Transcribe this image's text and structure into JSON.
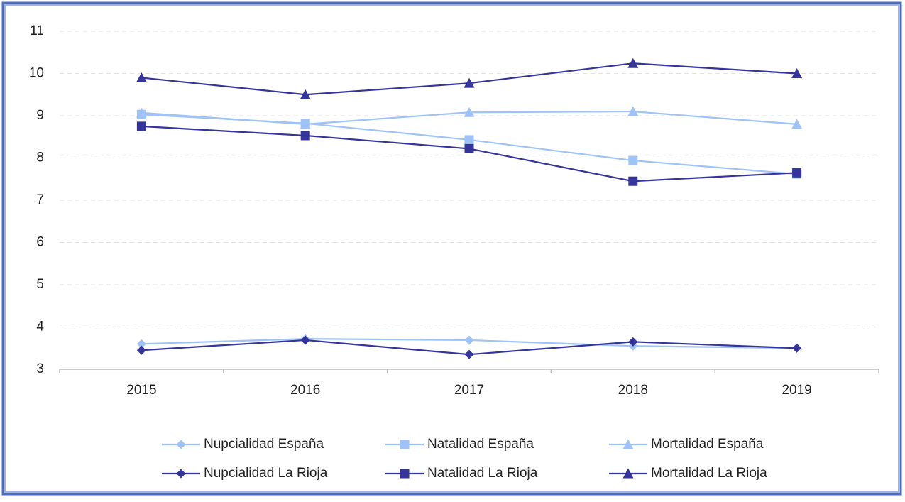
{
  "chart_data": {
    "type": "line",
    "categories": [
      "2015",
      "2016",
      "2017",
      "2018",
      "2019"
    ],
    "series": [
      {
        "name": "Nupcialidad España",
        "color": "#9fc3f6",
        "marker": "diamond",
        "values": [
          3.6,
          3.72,
          3.69,
          3.55,
          3.5
        ]
      },
      {
        "name": "Natalidad España",
        "color": "#9fc3f6",
        "marker": "square",
        "values": [
          9.03,
          8.82,
          8.43,
          7.94,
          7.62
        ]
      },
      {
        "name": "Mortalidad España",
        "color": "#9fc3f6",
        "marker": "triangle",
        "values": [
          9.07,
          8.8,
          9.08,
          9.1,
          8.8
        ]
      },
      {
        "name": "Nupcialidad La Rioja",
        "color": "#34349c",
        "marker": "diamond",
        "values": [
          3.45,
          3.69,
          3.35,
          3.65,
          3.5
        ]
      },
      {
        "name": "Natalidad La Rioja",
        "color": "#34349c",
        "marker": "square",
        "values": [
          8.75,
          8.53,
          8.22,
          7.45,
          7.65
        ]
      },
      {
        "name": "Mortalidad La Rioja",
        "color": "#34349c",
        "marker": "triangle",
        "values": [
          9.9,
          9.5,
          9.77,
          10.24,
          10.0
        ]
      }
    ],
    "ylim": [
      3,
      11
    ],
    "yticks": [
      3,
      4,
      5,
      6,
      7,
      8,
      9,
      10,
      11
    ],
    "grid": true,
    "legend": "bottom"
  }
}
